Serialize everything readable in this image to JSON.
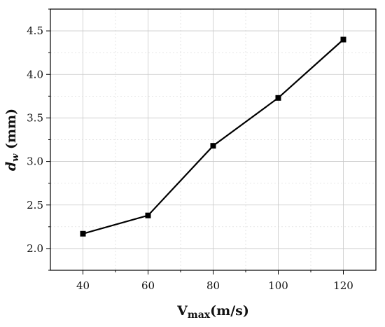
{
  "chart_data": {
    "type": "line",
    "title": "",
    "x": [
      40,
      60,
      80,
      100,
      120
    ],
    "series": [
      {
        "values": [
          2.17,
          2.38,
          3.18,
          3.73,
          4.4
        ]
      }
    ],
    "xlabel": {
      "main": "V",
      "sub": "max",
      "unit": "(m/s)"
    },
    "ylabel": {
      "main": "d",
      "sub": "w",
      "unit": " (mm)"
    },
    "xlim": [
      30,
      130
    ],
    "ylim": [
      1.75,
      4.75
    ],
    "xticks": [
      40,
      60,
      80,
      100,
      120
    ],
    "xtick_labels": [
      "40",
      "60",
      "80",
      "100",
      "120"
    ],
    "yticks": [
      2.0,
      2.5,
      3.0,
      3.5,
      4.0,
      4.5
    ],
    "ytick_labels": [
      "2.0",
      "2.5",
      "3.0",
      "3.5",
      "4.0",
      "4.5"
    ],
    "grid": true,
    "legend": "none",
    "marker": "square",
    "line_color": "#000000"
  }
}
